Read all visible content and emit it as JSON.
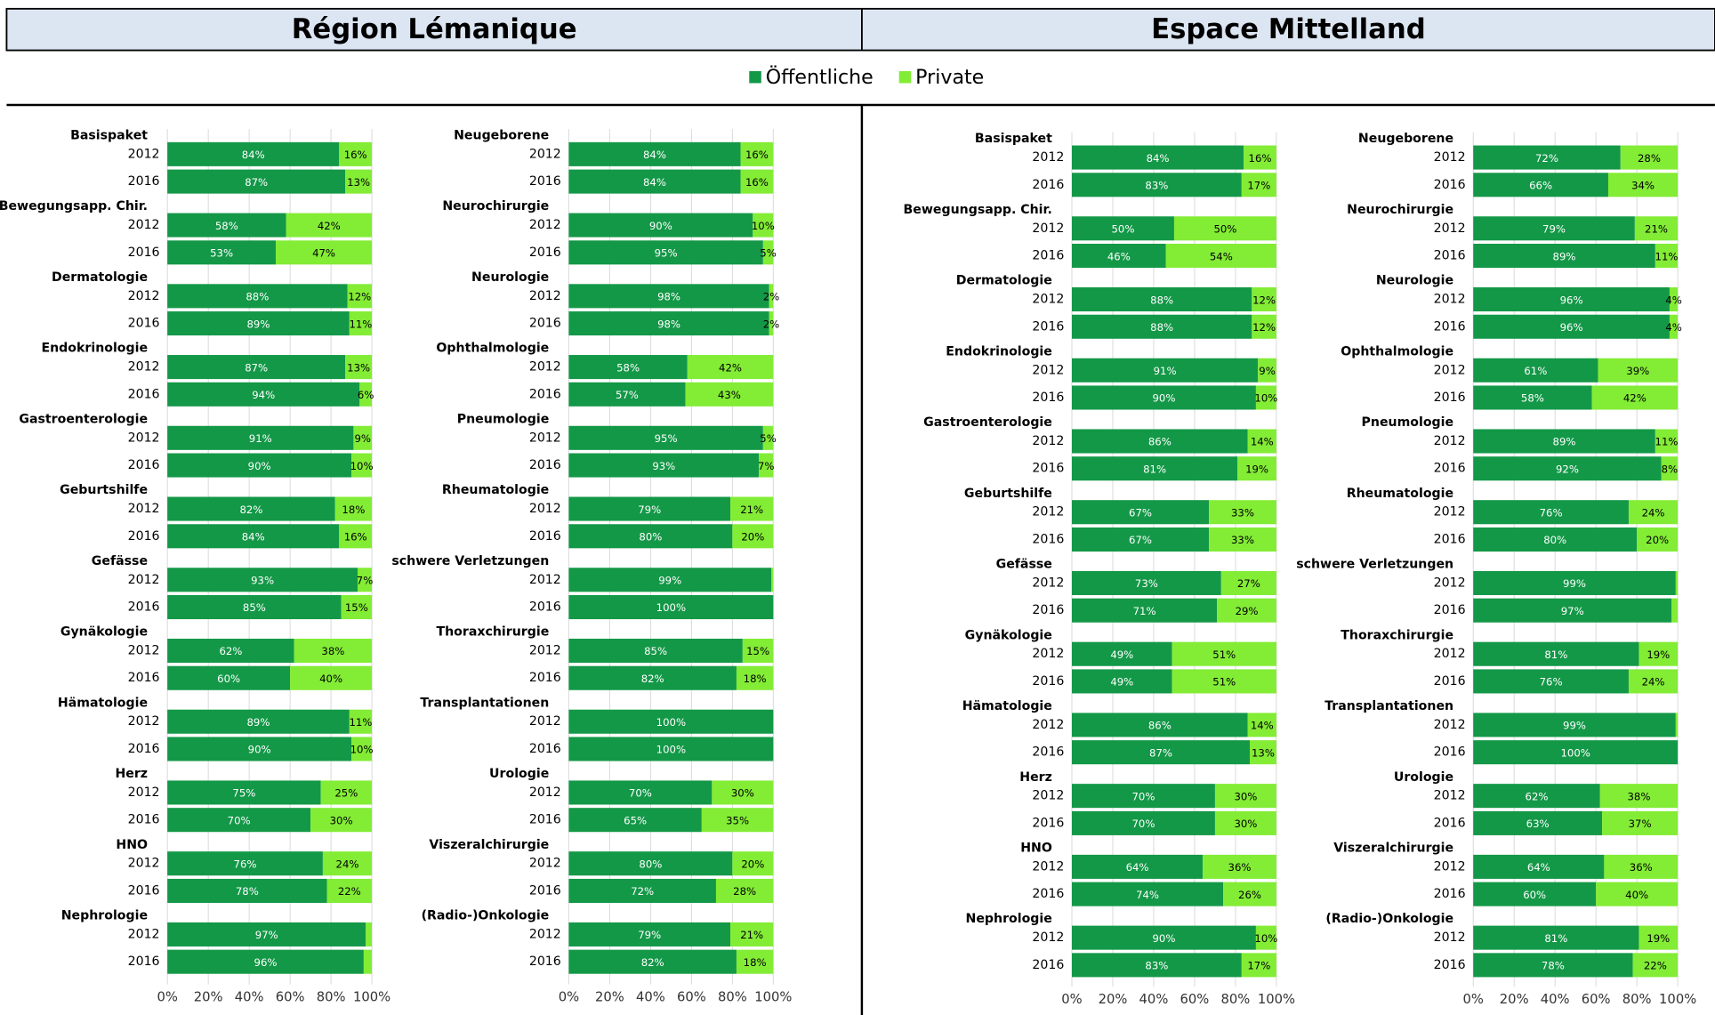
{
  "header": {
    "titles": [
      "Région Lémanique",
      "Espace Mittelland"
    ]
  },
  "chart_data": [
    {
      "type": "bar",
      "orientation": "horizontal",
      "stacked": true,
      "groups": [
        "Basispaket",
        "Bewegungsapp. Chir.",
        "Dermatologie",
        "Endokrinologie",
        "Gastroenterologie",
        "Geburtshilfe",
        "Gefässe",
        "Gynäkologie",
        "Hämatologie",
        "Herz",
        "HNO",
        "Nephrologie"
      ],
      "categories": [
        "2012",
        "2016",
        "2012",
        "2016",
        "2012",
        "2016",
        "2012",
        "2016",
        "2012",
        "2016",
        "2012",
        "2016",
        "2012",
        "2016",
        "2012",
        "2016",
        "2012",
        "2016",
        "2012",
        "2016",
        "2012",
        "2016",
        "2012",
        "2016"
      ],
      "series": [
        {
          "name": "Öffentliche",
          "color": "#139847",
          "values": [
            84,
            87,
            58,
            53,
            88,
            89,
            87,
            94,
            91,
            90,
            82,
            84,
            93,
            85,
            62,
            60,
            89,
            90,
            75,
            70,
            76,
            78,
            97,
            96
          ],
          "value_labels": [
            "84%",
            "87%",
            "58%",
            "53%",
            "88%",
            "89%",
            "87%",
            "94%",
            "91%",
            "90%",
            "82%",
            "84%",
            "93%",
            "85%",
            "62%",
            "60%",
            "89%",
            "90%",
            "75%",
            "70%",
            "76%",
            "78%",
            "97%",
            "96%"
          ]
        },
        {
          "name": "Private",
          "color": "#83ec35",
          "values": [
            16,
            13,
            42,
            47,
            12,
            11,
            13,
            6,
            9,
            10,
            18,
            16,
            7,
            15,
            38,
            40,
            11,
            10,
            25,
            30,
            24,
            22,
            3,
            4
          ],
          "value_labels": [
            "16%",
            "13%",
            "42%",
            "47%",
            "12%",
            "11%",
            "13%",
            "6%",
            "9%",
            "10%",
            "18%",
            "16%",
            "7%",
            "15%",
            "38%",
            "40%",
            "11%",
            "10%",
            "25%",
            "30%",
            "24%",
            "22%",
            null,
            null
          ]
        }
      ],
      "xlim": [
        0,
        100
      ],
      "xticks": [
        {
          "value": 0,
          "label": "0%"
        },
        {
          "value": 20,
          "label": "20%"
        },
        {
          "value": 40,
          "label": "40%"
        },
        {
          "value": 60,
          "label": "60%"
        },
        {
          "value": 80,
          "label": "80%"
        },
        {
          "value": 100,
          "label": "100%"
        }
      ],
      "grid": true
    },
    {
      "type": "bar",
      "orientation": "horizontal",
      "stacked": true,
      "groups": [
        "Neugeborene",
        "Neurochirurgie",
        "Neurologie",
        "Ophthalmologie",
        "Pneumologie",
        "Rheumatologie",
        "schwere Verletzungen",
        "Thoraxchirurgie",
        "Transplantationen",
        "Urologie",
        "Viszeralchirurgie",
        "(Radio-)Onkologie"
      ],
      "categories": [
        "2012",
        "2016",
        "2012",
        "2016",
        "2012",
        "2016",
        "2012",
        "2016",
        "2012",
        "2016",
        "2012",
        "2016",
        "2012",
        "2016",
        "2012",
        "2016",
        "2012",
        "2016",
        "2012",
        "2016",
        "2012",
        "2016",
        "2012",
        "2016"
      ],
      "series": [
        {
          "color": "#139847",
          "values": [
            84,
            84,
            90,
            95,
            98,
            98,
            58,
            57,
            95,
            93,
            79,
            80,
            99,
            100,
            85,
            82,
            100,
            100,
            70,
            65,
            80,
            72,
            79,
            82
          ],
          "value_labels": [
            "84%",
            "84%",
            "90%",
            "95%",
            "98%",
            "98%",
            "58%",
            "57%",
            "95%",
            "93%",
            "79%",
            "80%",
            "99%",
            "100%",
            "85%",
            "82%",
            "100%",
            "100%",
            "70%",
            "65%",
            "80%",
            "72%",
            "79%",
            "82%"
          ]
        },
        {
          "color": "#83ec35",
          "values": [
            16,
            16,
            10,
            5,
            2,
            2,
            42,
            43,
            5,
            7,
            21,
            20,
            1,
            0,
            15,
            18,
            0,
            0,
            30,
            35,
            20,
            28,
            21,
            18
          ],
          "value_labels": [
            "16%",
            "16%",
            "10%",
            "5%",
            "2%",
            "2%",
            "42%",
            "43%",
            "5%",
            "7%",
            "21%",
            "20%",
            null,
            null,
            "15%",
            "18%",
            null,
            null,
            "30%",
            "35%",
            "20%",
            "28%",
            "21%",
            "18%"
          ]
        }
      ],
      "xlim": [
        0,
        100
      ],
      "xticks": [
        {
          "value": 0,
          "label": "0%"
        },
        {
          "value": 20,
          "label": "20%"
        },
        {
          "value": 40,
          "label": "40%"
        },
        {
          "value": 60,
          "label": "60%"
        },
        {
          "value": 80,
          "label": "80%"
        },
        {
          "value": 100,
          "label": "100%"
        }
      ],
      "grid": true
    },
    {
      "type": "bar",
      "orientation": "horizontal",
      "stacked": true,
      "groups": [
        "Basispaket",
        "Bewegungsapp. Chir.",
        "Dermatologie",
        "Endokrinologie",
        "Gastroenterologie",
        "Geburtshilfe",
        "Gefässe",
        "Gynäkologie",
        "Hämatologie",
        "Herz",
        "HNO",
        "Nephrologie"
      ],
      "categories": [
        "2012",
        "2016",
        "2012",
        "2016",
        "2012",
        "2016",
        "2012",
        "2016",
        "2012",
        "2016",
        "2012",
        "2016",
        "2012",
        "2016",
        "2012",
        "2016",
        "2012",
        "2016",
        "2012",
        "2016",
        "2012",
        "2016",
        "2012",
        "2016"
      ],
      "series": [
        {
          "color": "#139847",
          "values": [
            84,
            83,
            50,
            46,
            88,
            88,
            91,
            90,
            86,
            81,
            67,
            67,
            73,
            71,
            49,
            49,
            86,
            87,
            70,
            70,
            64,
            74,
            90,
            83
          ],
          "value_labels": [
            "84%",
            "83%",
            "50%",
            "46%",
            "88%",
            "88%",
            "91%",
            "90%",
            "86%",
            "81%",
            "67%",
            "67%",
            "73%",
            "71%",
            "49%",
            "49%",
            "86%",
            "87%",
            "70%",
            "70%",
            "64%",
            "74%",
            "90%",
            "83%"
          ]
        },
        {
          "color": "#83ec35",
          "values": [
            16,
            17,
            50,
            54,
            12,
            12,
            9,
            10,
            14,
            19,
            33,
            33,
            27,
            29,
            51,
            51,
            14,
            13,
            30,
            30,
            36,
            26,
            10,
            17
          ],
          "value_labels": [
            "16%",
            "17%",
            "50%",
            "54%",
            "12%",
            "12%",
            "9%",
            "10%",
            "14%",
            "19%",
            "33%",
            "33%",
            "27%",
            "29%",
            "51%",
            "51%",
            "14%",
            "13%",
            "30%",
            "30%",
            "36%",
            "26%",
            "10%",
            "17%"
          ]
        }
      ],
      "xlim": [
        0,
        100
      ],
      "xticks": [
        {
          "value": 0,
          "label": "0%"
        },
        {
          "value": 20,
          "label": "20%"
        },
        {
          "value": 40,
          "label": "40%"
        },
        {
          "value": 60,
          "label": "60%"
        },
        {
          "value": 80,
          "label": "80%"
        },
        {
          "value": 100,
          "label": "100%"
        }
      ],
      "grid": true
    },
    {
      "type": "bar",
      "orientation": "horizontal",
      "stacked": true,
      "groups": [
        "Neugeborene",
        "Neurochirurgie",
        "Neurologie",
        "Ophthalmologie",
        "Pneumologie",
        "Rheumatologie",
        "schwere Verletzungen",
        "Thoraxchirurgie",
        "Transplantationen",
        "Urologie",
        "Viszeralchirurgie",
        "(Radio-)Onkologie"
      ],
      "categories": [
        "2012",
        "2016",
        "2012",
        "2016",
        "2012",
        "2016",
        "2012",
        "2016",
        "2012",
        "2016",
        "2012",
        "2016",
        "2012",
        "2016",
        "2012",
        "2016",
        "2012",
        "2016",
        "2012",
        "2016",
        "2012",
        "2016",
        "2012",
        "2016"
      ],
      "series": [
        {
          "color": "#139847",
          "values": [
            72,
            66,
            79,
            89,
            96,
            96,
            61,
            58,
            89,
            92,
            76,
            80,
            99,
            97,
            81,
            76,
            99,
            100,
            62,
            63,
            64,
            60,
            81,
            78
          ],
          "value_labels": [
            "72%",
            "66%",
            "79%",
            "89%",
            "96%",
            "96%",
            "61%",
            "58%",
            "89%",
            "92%",
            "76%",
            "80%",
            "99%",
            "97%",
            "81%",
            "76%",
            "99%",
            "100%",
            "62%",
            "63%",
            "64%",
            "60%",
            "81%",
            "78%"
          ]
        },
        {
          "color": "#83ec35",
          "values": [
            28,
            34,
            21,
            11,
            4,
            4,
            39,
            42,
            11,
            8,
            24,
            20,
            1,
            3,
            19,
            24,
            1,
            0,
            38,
            37,
            36,
            40,
            19,
            22
          ],
          "value_labels": [
            "28%",
            "34%",
            "21%",
            "11%",
            "4%",
            "4%",
            "39%",
            "42%",
            "11%",
            "8%",
            "24%",
            "20%",
            null,
            null,
            "19%",
            "24%",
            null,
            null,
            "38%",
            "37%",
            "36%",
            "40%",
            "19%",
            "22%"
          ]
        }
      ],
      "xlim": [
        0,
        100
      ],
      "xticks": [
        {
          "value": 0,
          "label": "0%"
        },
        {
          "value": 20,
          "label": "20%"
        },
        {
          "value": 40,
          "label": "40%"
        },
        {
          "value": 60,
          "label": "60%"
        },
        {
          "value": 80,
          "label": "80%"
        },
        {
          "value": 100,
          "label": "100%"
        }
      ],
      "grid": true
    }
  ]
}
